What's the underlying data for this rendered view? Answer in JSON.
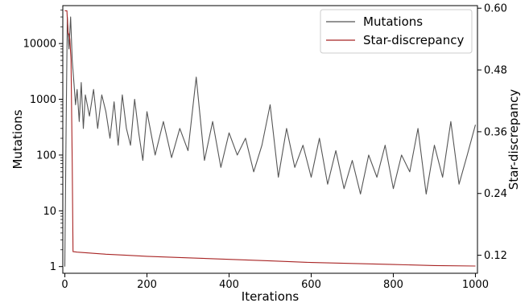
{
  "chart_data": {
    "type": "line",
    "xlabel": "Iterations",
    "ylabel_left": "Mutations",
    "ylabel_right": "Star-discrepancy",
    "xlim": [
      -5,
      1005
    ],
    "ylim_left_log10": [
      -0.12,
      4.68
    ],
    "ylim_right": [
      0.085,
      0.605
    ],
    "x_ticks": [
      0,
      200,
      400,
      600,
      800,
      1000
    ],
    "y_ticks_left": [
      {
        "value": 1,
        "label": "1"
      },
      {
        "value": 10,
        "label": "10"
      },
      {
        "value": 100,
        "label": "100"
      },
      {
        "value": 1000,
        "label": "1000"
      },
      {
        "value": 10000,
        "label": "10000"
      }
    ],
    "y_ticks_right": [
      {
        "value": 0.12,
        "label": "0.12"
      },
      {
        "value": 0.24,
        "label": "0.24"
      },
      {
        "value": 0.36,
        "label": "0.36"
      },
      {
        "value": 0.48,
        "label": "0.48"
      },
      {
        "value": 0.6,
        "label": "0.60"
      }
    ],
    "legend_position": "top-right",
    "series": [
      {
        "name": "Mutations",
        "axis": "left",
        "scale": "log",
        "color": "#555555",
        "x": [
          0,
          3,
          6,
          10,
          14,
          18,
          22,
          26,
          30,
          35,
          40,
          45,
          50,
          60,
          70,
          80,
          90,
          100,
          110,
          120,
          130,
          140,
          150,
          160,
          170,
          180,
          190,
          200,
          220,
          240,
          260,
          280,
          300,
          320,
          340,
          360,
          380,
          400,
          420,
          440,
          460,
          480,
          500,
          520,
          540,
          560,
          580,
          600,
          620,
          640,
          660,
          680,
          700,
          720,
          740,
          760,
          780,
          800,
          820,
          840,
          860,
          880,
          900,
          920,
          940,
          960,
          980,
          1000
        ],
        "y": [
          1,
          300,
          30000,
          8000,
          30000,
          5000,
          2000,
          800,
          1500,
          400,
          2000,
          300,
          1200,
          500,
          1500,
          300,
          1200,
          600,
          200,
          900,
          150,
          1200,
          300,
          150,
          1000,
          250,
          80,
          600,
          100,
          400,
          90,
          300,
          120,
          2500,
          80,
          400,
          60,
          250,
          100,
          200,
          50,
          150,
          800,
          40,
          300,
          60,
          150,
          40,
          200,
          30,
          120,
          25,
          80,
          20,
          100,
          40,
          150,
          25,
          100,
          50,
          300,
          20,
          150,
          40,
          400,
          30,
          100,
          350
        ]
      },
      {
        "name": "Star-discrepancy",
        "axis": "right",
        "scale": "linear",
        "color": "#a82424",
        "x": [
          0,
          5,
          8,
          10,
          12,
          15,
          18,
          20,
          30,
          50,
          100,
          150,
          200,
          300,
          400,
          500,
          600,
          700,
          800,
          900,
          1000
        ],
        "y": [
          0.595,
          0.595,
          0.55,
          0.55,
          0.54,
          0.5,
          0.3,
          0.127,
          0.126,
          0.125,
          0.122,
          0.12,
          0.118,
          0.115,
          0.112,
          0.109,
          0.106,
          0.104,
          0.102,
          0.1,
          0.099
        ]
      }
    ]
  }
}
